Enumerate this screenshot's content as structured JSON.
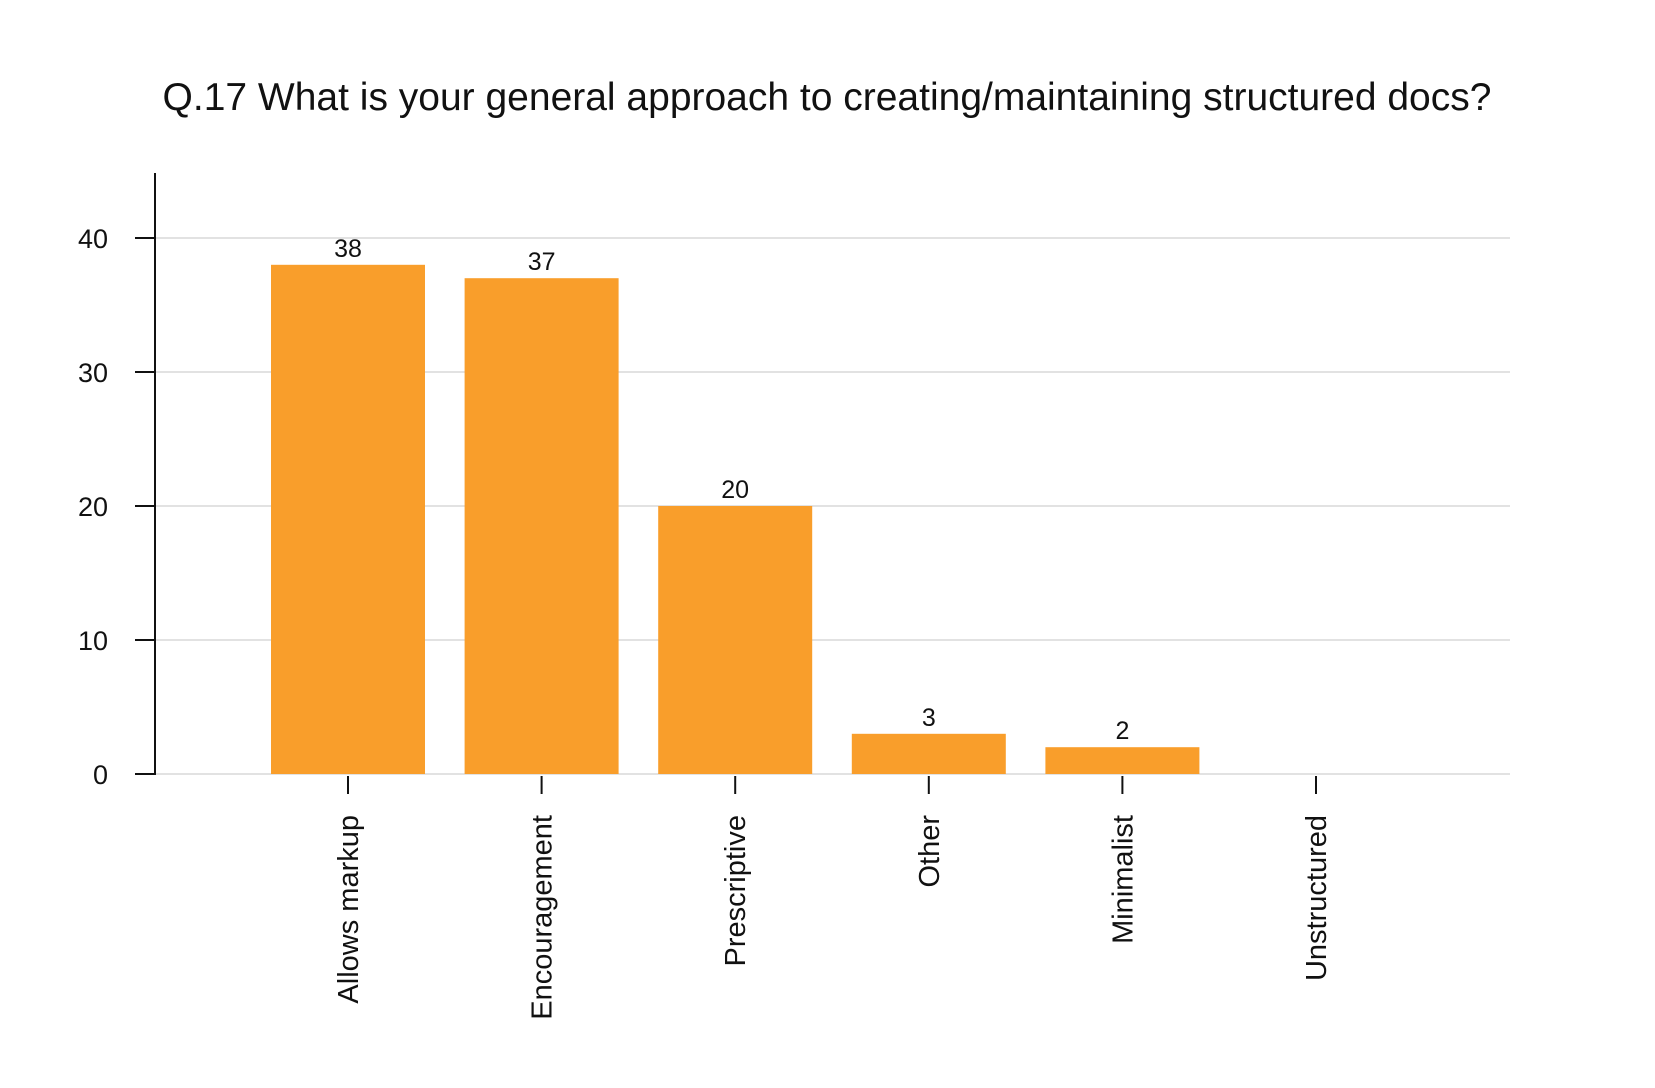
{
  "chart_data": {
    "type": "bar",
    "title": "Q.17 What is your general approach to creating/maintaining structured docs?",
    "xlabel": "",
    "ylabel": "",
    "categories": [
      "Allows markup",
      "Encouragement",
      "Prescriptive",
      "Other",
      "Minimalist",
      "Unstructured"
    ],
    "values": [
      38,
      37,
      20,
      3,
      2,
      0
    ],
    "data_labels": [
      "38",
      "37",
      "20",
      "3",
      "2",
      ""
    ],
    "ylim": [
      0,
      45
    ],
    "yticks": [
      0,
      10,
      20,
      30,
      40
    ],
    "ytick_labels": [
      "0",
      "10",
      "20",
      "30",
      "40"
    ],
    "grid": true,
    "bar_color": "#f99e2b",
    "grid_color": "#d8d8d8",
    "legend": "none"
  }
}
